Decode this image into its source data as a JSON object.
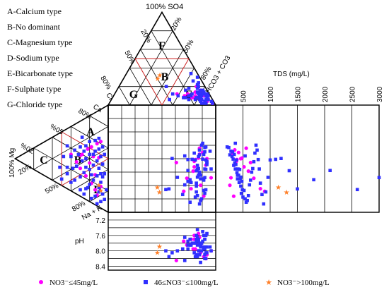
{
  "chart_data": {
    "type": "scatter",
    "title": "",
    "type_legend": [
      "A-Calcium type",
      "B-No dominant",
      "C-Magnesium type",
      "D-Sodium type",
      "E-Bicarbonate type",
      "F-Sulphate type",
      "G-Chloride type"
    ],
    "zone_letters": {
      "cation": [
        "A",
        "B",
        "C",
        "D"
      ],
      "anion": [
        "F",
        "B",
        "G",
        "E"
      ]
    },
    "axis_labels": {
      "so4": "100% SO4",
      "hco3": "HCO3 + CO3",
      "hco3_pct": "80%",
      "cl": "Cl",
      "cl_pct": "80%",
      "ca": "Ca",
      "ca_pct": "80%",
      "mg": "100% Mg",
      "nak": "Na + K",
      "nak_pct": "80%",
      "anion_ticks": [
        "20%",
        "50%",
        "80%",
        "50%",
        "20%"
      ],
      "cation_ticks": [
        "20%",
        "50%",
        "%05",
        "%0Z"
      ]
    },
    "tds": {
      "label": "TDS (mg/L)",
      "ticks": [
        500,
        1000,
        1500,
        2000,
        2500,
        3000
      ],
      "xlim": [
        0,
        3000
      ]
    },
    "ph": {
      "label": "pH",
      "ticks": [
        7.2,
        7.6,
        8.0,
        8.4
      ],
      "ylim": [
        7.0,
        8.5
      ]
    },
    "series": [
      {
        "name": "NO3⁻≤45mg/L",
        "marker": "circle",
        "color": "#ff00ff"
      },
      {
        "name": "46≤NO3⁻≤100mg/L",
        "marker": "square",
        "color": "#3030ff"
      },
      {
        "name": "NO3⁻>100mg/L",
        "marker": "star",
        "color": "#ff7f27"
      }
    ],
    "legend_position": "bottom",
    "samples": [
      {
        "g": 1,
        "ca": 58,
        "mg": 12,
        "cl": 8,
        "so4": 12,
        "tds": 350,
        "ph": 7.8
      },
      {
        "g": 1,
        "ca": 52,
        "mg": 18,
        "cl": 6,
        "so4": 10,
        "tds": 420,
        "ph": 7.9
      },
      {
        "g": 1,
        "ca": 48,
        "mg": 22,
        "cl": 10,
        "so4": 8,
        "tds": 300,
        "ph": 8.0
      },
      {
        "g": 1,
        "ca": 44,
        "mg": 16,
        "cl": 12,
        "so4": 14,
        "tds": 380,
        "ph": 7.7
      },
      {
        "g": 1,
        "ca": 40,
        "mg": 28,
        "cl": 4,
        "so4": 6,
        "tds": 460,
        "ph": 8.1
      },
      {
        "g": 1,
        "ca": 36,
        "mg": 20,
        "cl": 14,
        "so4": 10,
        "tds": 520,
        "ph": 7.6
      },
      {
        "g": 1,
        "ca": 30,
        "mg": 34,
        "cl": 6,
        "so4": 4,
        "tds": 340,
        "ph": 8.2
      },
      {
        "g": 1,
        "ca": 26,
        "mg": 30,
        "cl": 16,
        "so4": 8,
        "tds": 600,
        "ph": 7.95
      },
      {
        "g": 1,
        "ca": 22,
        "mg": 24,
        "cl": 20,
        "so4": 12,
        "tds": 700,
        "ph": 7.85
      },
      {
        "g": 1,
        "ca": 18,
        "mg": 18,
        "cl": 10,
        "so4": 6,
        "tds": 260,
        "ph": 8.05
      },
      {
        "g": 1,
        "ca": 14,
        "mg": 14,
        "cl": 24,
        "so4": 10,
        "tds": 900,
        "ph": 7.75
      },
      {
        "g": 1,
        "ca": 10,
        "mg": 12,
        "cl": 8,
        "so4": 4,
        "tds": 330,
        "ph": 8.15
      },
      {
        "g": 1,
        "ca": 34,
        "mg": 40,
        "cl": 12,
        "so4": 6,
        "tds": 480,
        "ph": 7.55
      },
      {
        "g": 1,
        "ca": 62,
        "mg": 8,
        "cl": 6,
        "so4": 16,
        "tds": 560,
        "ph": 7.65
      },
      {
        "g": 1,
        "ca": 46,
        "mg": 10,
        "cl": 30,
        "so4": 12,
        "tds": 640,
        "ph": 8.25
      },
      {
        "g": 1,
        "ca": 28,
        "mg": 14,
        "cl": 2,
        "so4": 2,
        "tds": 280,
        "ph": 8.0
      },
      {
        "g": 1,
        "ca": 20,
        "mg": 8,
        "cl": 18,
        "so4": 8,
        "tds": 820,
        "ph": 7.7
      },
      {
        "g": 1,
        "ca": 38,
        "mg": 30,
        "cl": 8,
        "so4": 20,
        "tds": 390,
        "ph": 7.95
      },
      {
        "g": 2,
        "ca": 60,
        "mg": 14,
        "cl": 4,
        "so4": 8,
        "tds": 210,
        "ph": 7.6
      },
      {
        "g": 2,
        "ca": 56,
        "mg": 20,
        "cl": 6,
        "so4": 6,
        "tds": 240,
        "ph": 7.7
      },
      {
        "g": 2,
        "ca": 54,
        "mg": 10,
        "cl": 8,
        "so4": 12,
        "tds": 260,
        "ph": 7.8
      },
      {
        "g": 2,
        "ca": 50,
        "mg": 24,
        "cl": 2,
        "so4": 4,
        "tds": 280,
        "ph": 7.9
      },
      {
        "g": 2,
        "ca": 50,
        "mg": 14,
        "cl": 10,
        "so4": 10,
        "tds": 300,
        "ph": 8.0
      },
      {
        "g": 2,
        "ca": 46,
        "mg": 30,
        "cl": 6,
        "so4": 6,
        "tds": 310,
        "ph": 8.1
      },
      {
        "g": 2,
        "ca": 44,
        "mg": 20,
        "cl": 4,
        "so4": 14,
        "tds": 320,
        "ph": 7.75
      },
      {
        "g": 2,
        "ca": 42,
        "mg": 12,
        "cl": 12,
        "so4": 8,
        "tds": 330,
        "ph": 7.85
      },
      {
        "g": 2,
        "ca": 40,
        "mg": 36,
        "cl": 8,
        "so4": 4,
        "tds": 340,
        "ph": 7.95
      },
      {
        "g": 2,
        "ca": 38,
        "mg": 24,
        "cl": 2,
        "so4": 10,
        "tds": 350,
        "ph": 8.05
      },
      {
        "g": 2,
        "ca": 36,
        "mg": 16,
        "cl": 10,
        "so4": 12,
        "tds": 360,
        "ph": 7.65
      },
      {
        "g": 2,
        "ca": 34,
        "mg": 28,
        "cl": 4,
        "so4": 6,
        "tds": 370,
        "ph": 7.55
      },
      {
        "g": 2,
        "ca": 32,
        "mg": 40,
        "cl": 14,
        "so4": 8,
        "tds": 380,
        "ph": 8.15
      },
      {
        "g": 2,
        "ca": 30,
        "mg": 20,
        "cl": 6,
        "so4": 16,
        "tds": 390,
        "ph": 7.8
      },
      {
        "g": 2,
        "ca": 28,
        "mg": 12,
        "cl": 8,
        "so4": 10,
        "tds": 400,
        "ph": 7.9
      },
      {
        "g": 2,
        "ca": 26,
        "mg": 34,
        "cl": 2,
        "so4": 2,
        "tds": 410,
        "ph": 8.0
      },
      {
        "g": 2,
        "ca": 24,
        "mg": 26,
        "cl": 12,
        "so4": 6,
        "tds": 420,
        "ph": 7.7
      },
      {
        "g": 2,
        "ca": 22,
        "mg": 16,
        "cl": 16,
        "so4": 12,
        "tds": 430,
        "ph": 7.85
      },
      {
        "g": 2,
        "ca": 20,
        "mg": 44,
        "cl": 4,
        "so4": 8,
        "tds": 440,
        "ph": 8.2
      },
      {
        "g": 2,
        "ca": 18,
        "mg": 30,
        "cl": 8,
        "so4": 4,
        "tds": 450,
        "ph": 7.6
      },
      {
        "g": 2,
        "ca": 16,
        "mg": 20,
        "cl": 10,
        "so4": 14,
        "tds": 460,
        "ph": 8.1
      },
      {
        "g": 2,
        "ca": 14,
        "mg": 10,
        "cl": 6,
        "so4": 6,
        "tds": 470,
        "ph": 7.95
      },
      {
        "g": 2,
        "ca": 12,
        "mg": 36,
        "cl": 20,
        "so4": 10,
        "tds": 480,
        "ph": 7.75
      },
      {
        "g": 2,
        "ca": 10,
        "mg": 24,
        "cl": 2,
        "so4": 12,
        "tds": 490,
        "ph": 8.05
      },
      {
        "g": 2,
        "ca": 8,
        "mg": 14,
        "cl": 14,
        "so4": 8,
        "tds": 500,
        "ph": 7.8
      },
      {
        "g": 2,
        "ca": 6,
        "mg": 30,
        "cl": 8,
        "so4": 4,
        "tds": 520,
        "ph": 7.9
      },
      {
        "g": 2,
        "ca": 4,
        "mg": 18,
        "cl": 4,
        "so4": 16,
        "tds": 540,
        "ph": 8.0
      },
      {
        "g": 2,
        "ca": 6,
        "mg": 8,
        "cl": 18,
        "so4": 10,
        "tds": 560,
        "ph": 7.7
      },
      {
        "g": 2,
        "ca": 10,
        "mg": 4,
        "cl": 10,
        "so4": 6,
        "tds": 580,
        "ph": 7.85
      },
      {
        "g": 2,
        "ca": 14,
        "mg": 6,
        "cl": 6,
        "so4": 20,
        "tds": 600,
        "ph": 8.15
      },
      {
        "g": 2,
        "ca": 24,
        "mg": 8,
        "cl": 24,
        "so4": 8,
        "tds": 620,
        "ph": 7.65
      },
      {
        "g": 2,
        "ca": 30,
        "mg": 6,
        "cl": 4,
        "so4": 12,
        "tds": 640,
        "ph": 7.95
      },
      {
        "g": 2,
        "ca": 36,
        "mg": 10,
        "cl": 12,
        "so4": 4,
        "tds": 660,
        "ph": 8.1
      },
      {
        "g": 2,
        "ca": 42,
        "mg": 6,
        "cl": 8,
        "so4": 14,
        "tds": 680,
        "ph": 7.75
      },
      {
        "g": 2,
        "ca": 48,
        "mg": 8,
        "cl": 2,
        "so4": 10,
        "tds": 700,
        "ph": 7.9
      },
      {
        "g": 2,
        "ca": 58,
        "mg": 6,
        "cl": 16,
        "so4": 6,
        "tds": 720,
        "ph": 8.05
      },
      {
        "g": 2,
        "ca": 64,
        "mg": 10,
        "cl": 6,
        "so4": 12,
        "tds": 740,
        "ph": 7.8
      },
      {
        "g": 2,
        "ca": 40,
        "mg": 44,
        "cl": 10,
        "so4": 8,
        "tds": 760,
        "ph": 8.0
      },
      {
        "g": 2,
        "ca": 28,
        "mg": 48,
        "cl": 22,
        "so4": 6,
        "tds": 780,
        "ph": 7.85
      },
      {
        "g": 2,
        "ca": 16,
        "mg": 52,
        "cl": 4,
        "so4": 10,
        "tds": 800,
        "ph": 8.2
      },
      {
        "g": 2,
        "ca": 8,
        "mg": 40,
        "cl": 8,
        "so4": 18,
        "tds": 820,
        "ph": 7.7
      },
      {
        "g": 2,
        "ca": 4,
        "mg": 26,
        "cl": 26,
        "so4": 8,
        "tds": 850,
        "ph": 7.95
      },
      {
        "g": 2,
        "ca": 2,
        "mg": 12,
        "cl": 12,
        "so4": 4,
        "tds": 880,
        "ph": 8.1
      },
      {
        "g": 2,
        "ca": 20,
        "mg": 2,
        "cl": 6,
        "so4": 22,
        "tds": 920,
        "ph": 7.6
      },
      {
        "g": 2,
        "ca": 34,
        "mg": 4,
        "cl": 30,
        "so4": 10,
        "tds": 960,
        "ph": 8.0
      },
      {
        "g": 2,
        "ca": 52,
        "mg": 4,
        "cl": 4,
        "so4": 8,
        "tds": 1000,
        "ph": 7.9
      },
      {
        "g": 2,
        "ca": 46,
        "mg": 16,
        "cl": 8,
        "so4": 26,
        "tds": 1100,
        "ph": 7.8
      },
      {
        "g": 2,
        "ca": 38,
        "mg": 32,
        "cl": 34,
        "so4": 12,
        "tds": 1200,
        "ph": 8.05
      },
      {
        "g": 2,
        "ca": 22,
        "mg": 38,
        "cl": 2,
        "so4": 30,
        "tds": 1350,
        "ph": 7.75
      },
      {
        "g": 2,
        "ca": 12,
        "mg": 22,
        "cl": 40,
        "so4": 6,
        "tds": 1500,
        "ph": 8.15
      },
      {
        "g": 2,
        "ca": 6,
        "mg": 50,
        "cl": 6,
        "so4": 34,
        "tds": 1800,
        "ph": 7.85
      },
      {
        "g": 2,
        "ca": 30,
        "mg": 24,
        "cl": 16,
        "so4": 18,
        "tds": 2100,
        "ph": 7.95
      },
      {
        "g": 2,
        "ca": 18,
        "mg": 10,
        "cl": 36,
        "so4": 20,
        "tds": 2600,
        "ph": 8.0
      },
      {
        "g": 2,
        "ca": 26,
        "mg": 18,
        "cl": 8,
        "so4": 2,
        "tds": 3000,
        "ph": 7.7
      },
      {
        "g": 2,
        "ca": 44,
        "mg": 26,
        "cl": 20,
        "so4": 16,
        "tds": 540,
        "ph": 8.25
      },
      {
        "g": 2,
        "ca": 32,
        "mg": 8,
        "cl": 4,
        "so4": 24,
        "tds": 460,
        "ph": 7.45
      },
      {
        "g": 2,
        "ca": 14,
        "mg": 44,
        "cl": 12,
        "so4": 2,
        "tds": 400,
        "ph": 8.3
      },
      {
        "g": 2,
        "ca": 56,
        "mg": 28,
        "cl": 10,
        "so4": 2,
        "tds": 360,
        "ph": 7.5
      },
      {
        "g": 3,
        "ca": 20,
        "mg": 10,
        "cl": 40,
        "so4": 28,
        "tds": 1150,
        "ph": 8.05
      },
      {
        "g": 3,
        "ca": 16,
        "mg": 8,
        "cl": 36,
        "so4": 32,
        "tds": 1300,
        "ph": 7.9
      }
    ]
  },
  "legend": [
    {
      "label": "NO3⁻≤45mg/L"
    },
    {
      "label": "46≤NO3⁻≤100mg/L"
    },
    {
      "label": "NO3⁻>100mg/L"
    }
  ]
}
